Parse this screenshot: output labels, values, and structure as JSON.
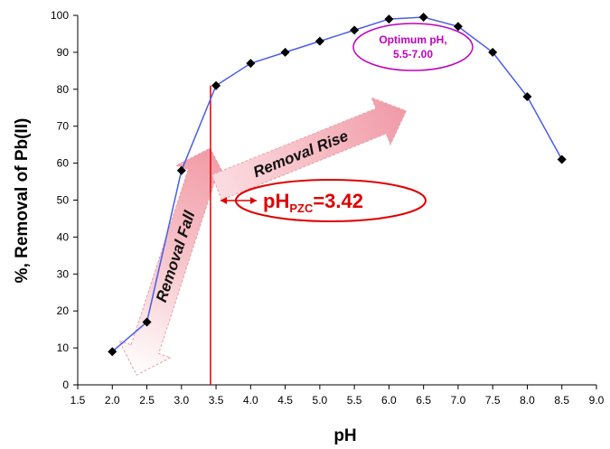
{
  "chart_data": {
    "type": "line",
    "xlabel": "pH",
    "ylabel": "%, Removal of Pb(II)",
    "xlim": [
      1.5,
      9.0
    ],
    "ylim": [
      0,
      100
    ],
    "x_ticks": [
      "1.5",
      "2.0",
      "2.5",
      "3.0",
      "3.5",
      "4.0",
      "4.5",
      "5.0",
      "5.5",
      "6.0",
      "6.5",
      "7.0",
      "7.5",
      "8.0",
      "8.5",
      "9.0"
    ],
    "y_ticks": [
      "0",
      "10",
      "20",
      "30",
      "40",
      "50",
      "60",
      "70",
      "80",
      "90",
      "100"
    ],
    "grid": false,
    "line_color": "#4a5ee8",
    "marker_color": "#000000",
    "series": [
      {
        "x": [
          2.0,
          2.5,
          3.0,
          3.5,
          4.0,
          4.5,
          5.0,
          5.5,
          6.0,
          6.5,
          7.0,
          7.5,
          8.0,
          8.5
        ],
        "y": [
          9,
          17,
          58,
          81,
          87,
          90,
          93,
          96,
          99,
          99.5,
          97,
          90,
          78,
          61
        ]
      }
    ],
    "annotations": {
      "pzc": {
        "x": 3.42,
        "prefix": "pH",
        "subscript": "PZC",
        "suffix": "=3.42",
        "color": "#e00000"
      },
      "removal_fall": "Removal Fall",
      "removal_rise": "Removal Rise",
      "optimum": {
        "line1": "Optimum pH,",
        "line2": "5.5-7.00",
        "color": "#c000c0"
      }
    }
  }
}
